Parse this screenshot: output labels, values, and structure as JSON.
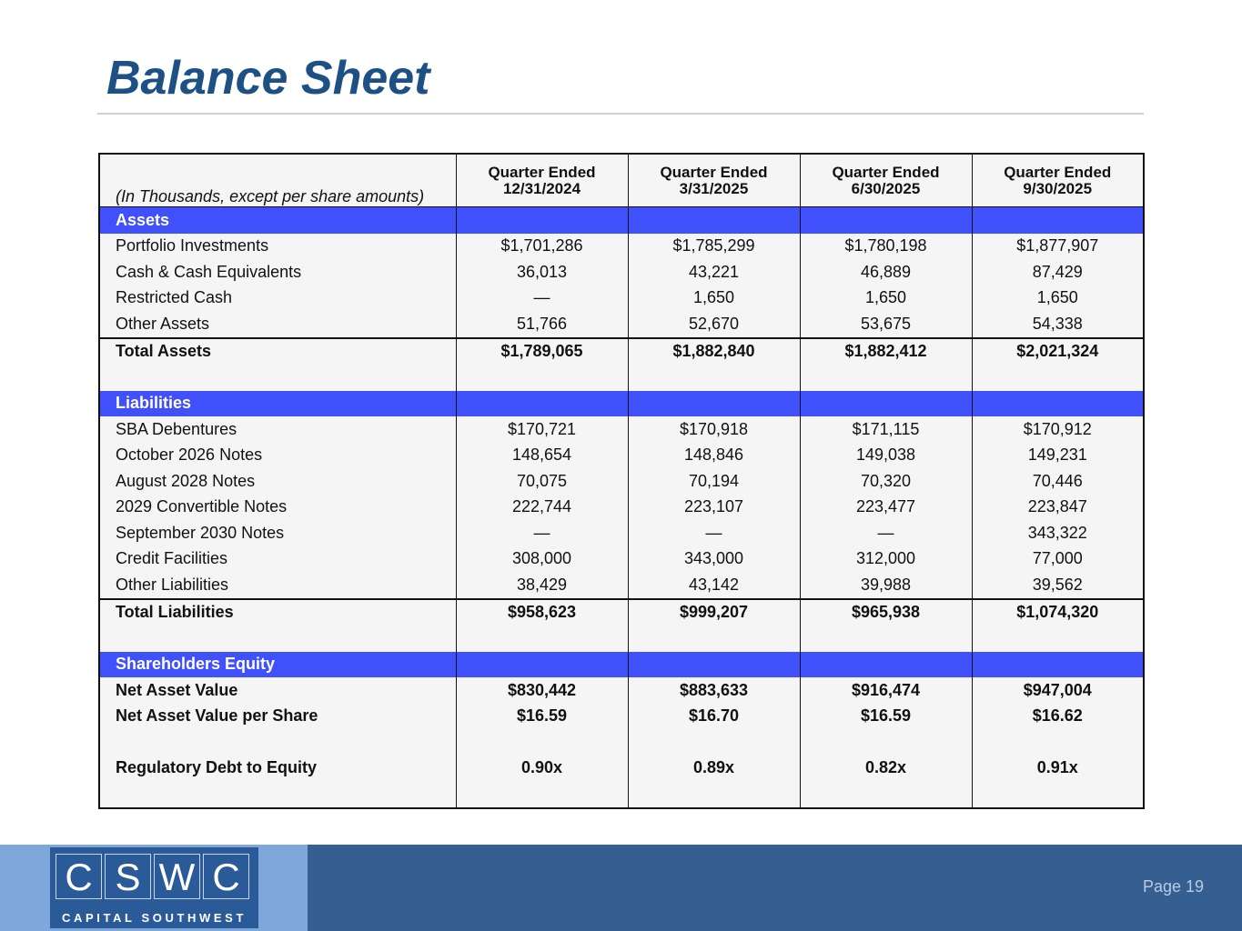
{
  "title": "Balance Sheet",
  "table": {
    "note": "(In Thousands, except per share amounts)",
    "columns": [
      {
        "label": "Quarter Ended",
        "date": "12/31/2024"
      },
      {
        "label": "Quarter Ended",
        "date": "3/31/2025"
      },
      {
        "label": "Quarter Ended",
        "date": "6/30/2025"
      },
      {
        "label": "Quarter Ended",
        "date": "9/30/2025"
      }
    ],
    "sections": [
      {
        "title": "Assets",
        "rows": [
          {
            "label": "Portfolio Investments",
            "values": [
              "$1,701,286",
              "$1,785,299",
              "$1,780,198",
              "$1,877,907"
            ]
          },
          {
            "label": "Cash & Cash Equivalents",
            "values": [
              "36,013",
              "43,221",
              "46,889",
              "87,429"
            ]
          },
          {
            "label": "Restricted Cash",
            "values": [
              "—",
              "1,650",
              "1,650",
              "1,650"
            ]
          },
          {
            "label": "Other Assets",
            "values": [
              "51,766",
              "52,670",
              "53,675",
              "54,338"
            ]
          }
        ],
        "total": {
          "label": "Total Assets",
          "values": [
            "$1,789,065",
            "$1,882,840",
            "$1,882,412",
            "$2,021,324"
          ]
        }
      },
      {
        "title": "Liabilities",
        "rows": [
          {
            "label": "SBA Debentures",
            "values": [
              "$170,721",
              "$170,918",
              "$171,115",
              "$170,912"
            ]
          },
          {
            "label": "October 2026 Notes",
            "values": [
              "148,654",
              "148,846",
              "149,038",
              "149,231"
            ]
          },
          {
            "label": "August 2028 Notes",
            "values": [
              "70,075",
              "70,194",
              "70,320",
              "70,446"
            ]
          },
          {
            "label": "2029 Convertible Notes",
            "values": [
              "222,744",
              "223,107",
              "223,477",
              "223,847"
            ]
          },
          {
            "label": "September 2030 Notes",
            "values": [
              "—",
              "—",
              "—",
              "343,322"
            ]
          },
          {
            "label": "Credit Facilities",
            "values": [
              "308,000",
              "343,000",
              "312,000",
              "77,000"
            ]
          },
          {
            "label": "Other Liabilities",
            "values": [
              "38,429",
              "43,142",
              "39,988",
              "39,562"
            ]
          }
        ],
        "total": {
          "label": "Total Liabilities",
          "values": [
            "$958,623",
            "$999,207",
            "$965,938",
            "$1,074,320"
          ]
        }
      },
      {
        "title": "Shareholders Equity",
        "rows": [
          {
            "label": "Net Asset Value",
            "values": [
              "$830,442",
              "$883,633",
              "$916,474",
              "$947,004"
            ]
          },
          {
            "label": "Net Asset Value per Share",
            "values": [
              "$16.59",
              "$16.70",
              "$16.59",
              "$16.62"
            ]
          }
        ]
      }
    ],
    "ratio": {
      "label": "Regulatory Debt to Equity",
      "values": [
        "0.90x",
        "0.89x",
        "0.82x",
        "0.91x"
      ]
    }
  },
  "footer": {
    "logo": {
      "letters": [
        "C",
        "S",
        "W",
        "C"
      ],
      "name": "CAPITAL SOUTHWEST"
    },
    "page": "Page 19"
  }
}
